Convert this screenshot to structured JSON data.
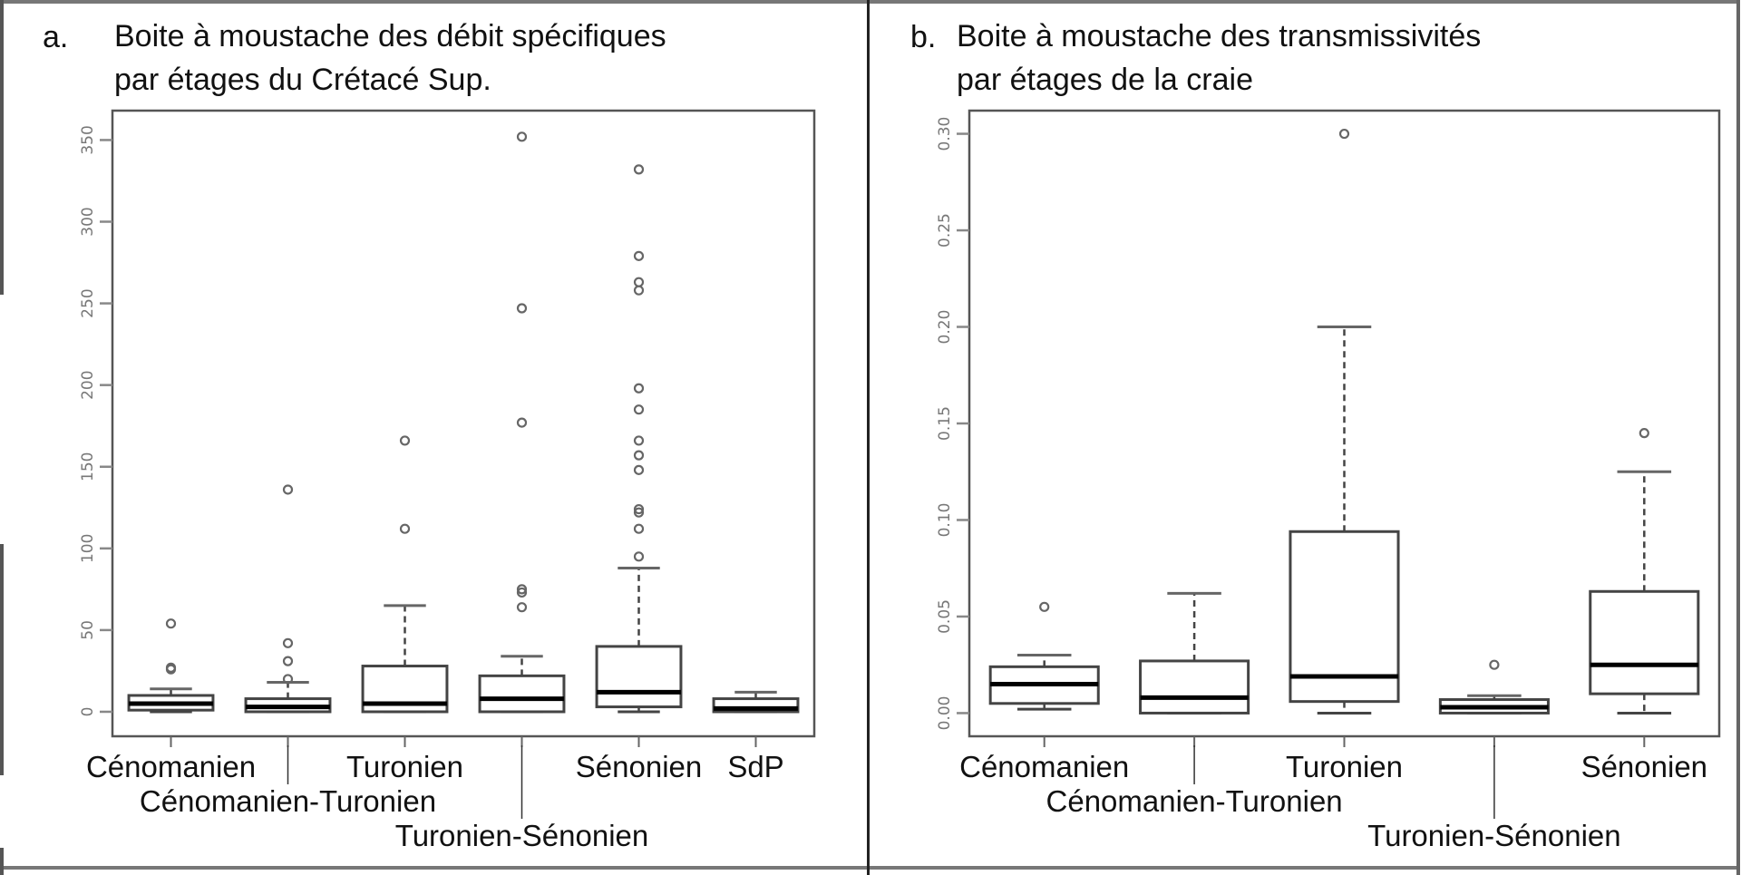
{
  "panels": [
    {
      "letter": "a.",
      "title_line1": "Boite à moustache des débit spécifiques",
      "title_line2": "par étages du Crétacé Sup."
    },
    {
      "letter": "b.",
      "title_line1": "Boite à moustache des transmissivités",
      "title_line2": "par étages de la craie"
    }
  ],
  "chart_data": [
    {
      "type": "boxplot",
      "title": "Boite à moustache des débit spécifiques par étages du Crétacé Sup.",
      "xlabel": "",
      "ylabel": "",
      "ylim": [
        -15,
        368
      ],
      "yticks": [
        0,
        50,
        100,
        150,
        200,
        250,
        300,
        350
      ],
      "ytick_labels": [
        "0",
        "50",
        "100",
        "150",
        "200",
        "250",
        "300",
        "350"
      ],
      "grid": false,
      "categories": [
        "Cénomanien",
        "Cénomanien-Turonien",
        "Turonien",
        "Turonien-Sénonien",
        "Sénonien",
        "SdP"
      ],
      "label_rows": [
        0,
        1,
        0,
        2,
        0,
        0
      ],
      "series": [
        {
          "name": "Cénomanien",
          "whisker_low": 0,
          "q1": 1,
          "median": 5,
          "q3": 10,
          "whisker_high": 14,
          "outliers": [
            26,
            27,
            54
          ]
        },
        {
          "name": "Cénomanien-Turonien",
          "whisker_low": 0,
          "q1": 0,
          "median": 3,
          "q3": 8,
          "whisker_high": 18,
          "outliers": [
            20,
            31,
            42,
            136
          ]
        },
        {
          "name": "Turonien",
          "whisker_low": 0,
          "q1": 0,
          "median": 5,
          "q3": 28,
          "whisker_high": 65,
          "outliers": [
            112,
            166
          ]
        },
        {
          "name": "Turonien-Sénonien",
          "whisker_low": 0,
          "q1": 0,
          "median": 8,
          "q3": 22,
          "whisker_high": 34,
          "outliers": [
            64,
            73,
            75,
            177,
            247,
            352
          ]
        },
        {
          "name": "Sénonien",
          "whisker_low": 0,
          "q1": 3,
          "median": 12,
          "q3": 40,
          "whisker_high": 88,
          "outliers": [
            95,
            112,
            122,
            124,
            148,
            157,
            166,
            185,
            198,
            258,
            263,
            279,
            332
          ]
        },
        {
          "name": "SdP",
          "whisker_low": 0,
          "q1": 0,
          "median": 2,
          "q3": 8,
          "whisker_high": 12,
          "outliers": []
        }
      ]
    },
    {
      "type": "boxplot",
      "title": "Boite à moustache des transmissivités par étages de la craie",
      "xlabel": "",
      "ylabel": "",
      "ylim": [
        -0.012,
        0.312
      ],
      "yticks": [
        0,
        0.05,
        0.1,
        0.15,
        0.2,
        0.25,
        0.3
      ],
      "ytick_labels": [
        "0.00",
        "0.05",
        "0.10",
        "0.15",
        "0.20",
        "0.25",
        "0.30"
      ],
      "grid": false,
      "categories": [
        "Cénomanien",
        "Cénomanien-Turonien",
        "Turonien",
        "Turonien-Sénonien",
        "Sénonien"
      ],
      "label_rows": [
        0,
        1,
        0,
        2,
        0
      ],
      "series": [
        {
          "name": "Cénomanien",
          "whisker_low": 0.002,
          "q1": 0.005,
          "median": 0.015,
          "q3": 0.024,
          "whisker_high": 0.03,
          "outliers": [
            0.055
          ]
        },
        {
          "name": "Cénomanien-Turonien",
          "whisker_low": 0,
          "q1": 0,
          "median": 0.008,
          "q3": 0.027,
          "whisker_high": 0.062,
          "outliers": []
        },
        {
          "name": "Turonien",
          "whisker_low": 0,
          "q1": 0.006,
          "median": 0.019,
          "q3": 0.094,
          "whisker_high": 0.2,
          "outliers": [
            0.3
          ]
        },
        {
          "name": "Turonien-Sénonien",
          "whisker_low": 0,
          "q1": 0,
          "median": 0.003,
          "q3": 0.007,
          "whisker_high": 0.009,
          "outliers": [
            0.025
          ]
        },
        {
          "name": "Sénonien",
          "whisker_low": 0,
          "q1": 0.01,
          "median": 0.025,
          "q3": 0.063,
          "whisker_high": 0.125,
          "outliers": [
            0.145
          ]
        }
      ]
    }
  ],
  "colors": {
    "box_stroke": "#444444",
    "median": "#000000",
    "axis": "#555555",
    "outlier": "#666666",
    "tick_label": "#777777",
    "text": "#111111"
  }
}
